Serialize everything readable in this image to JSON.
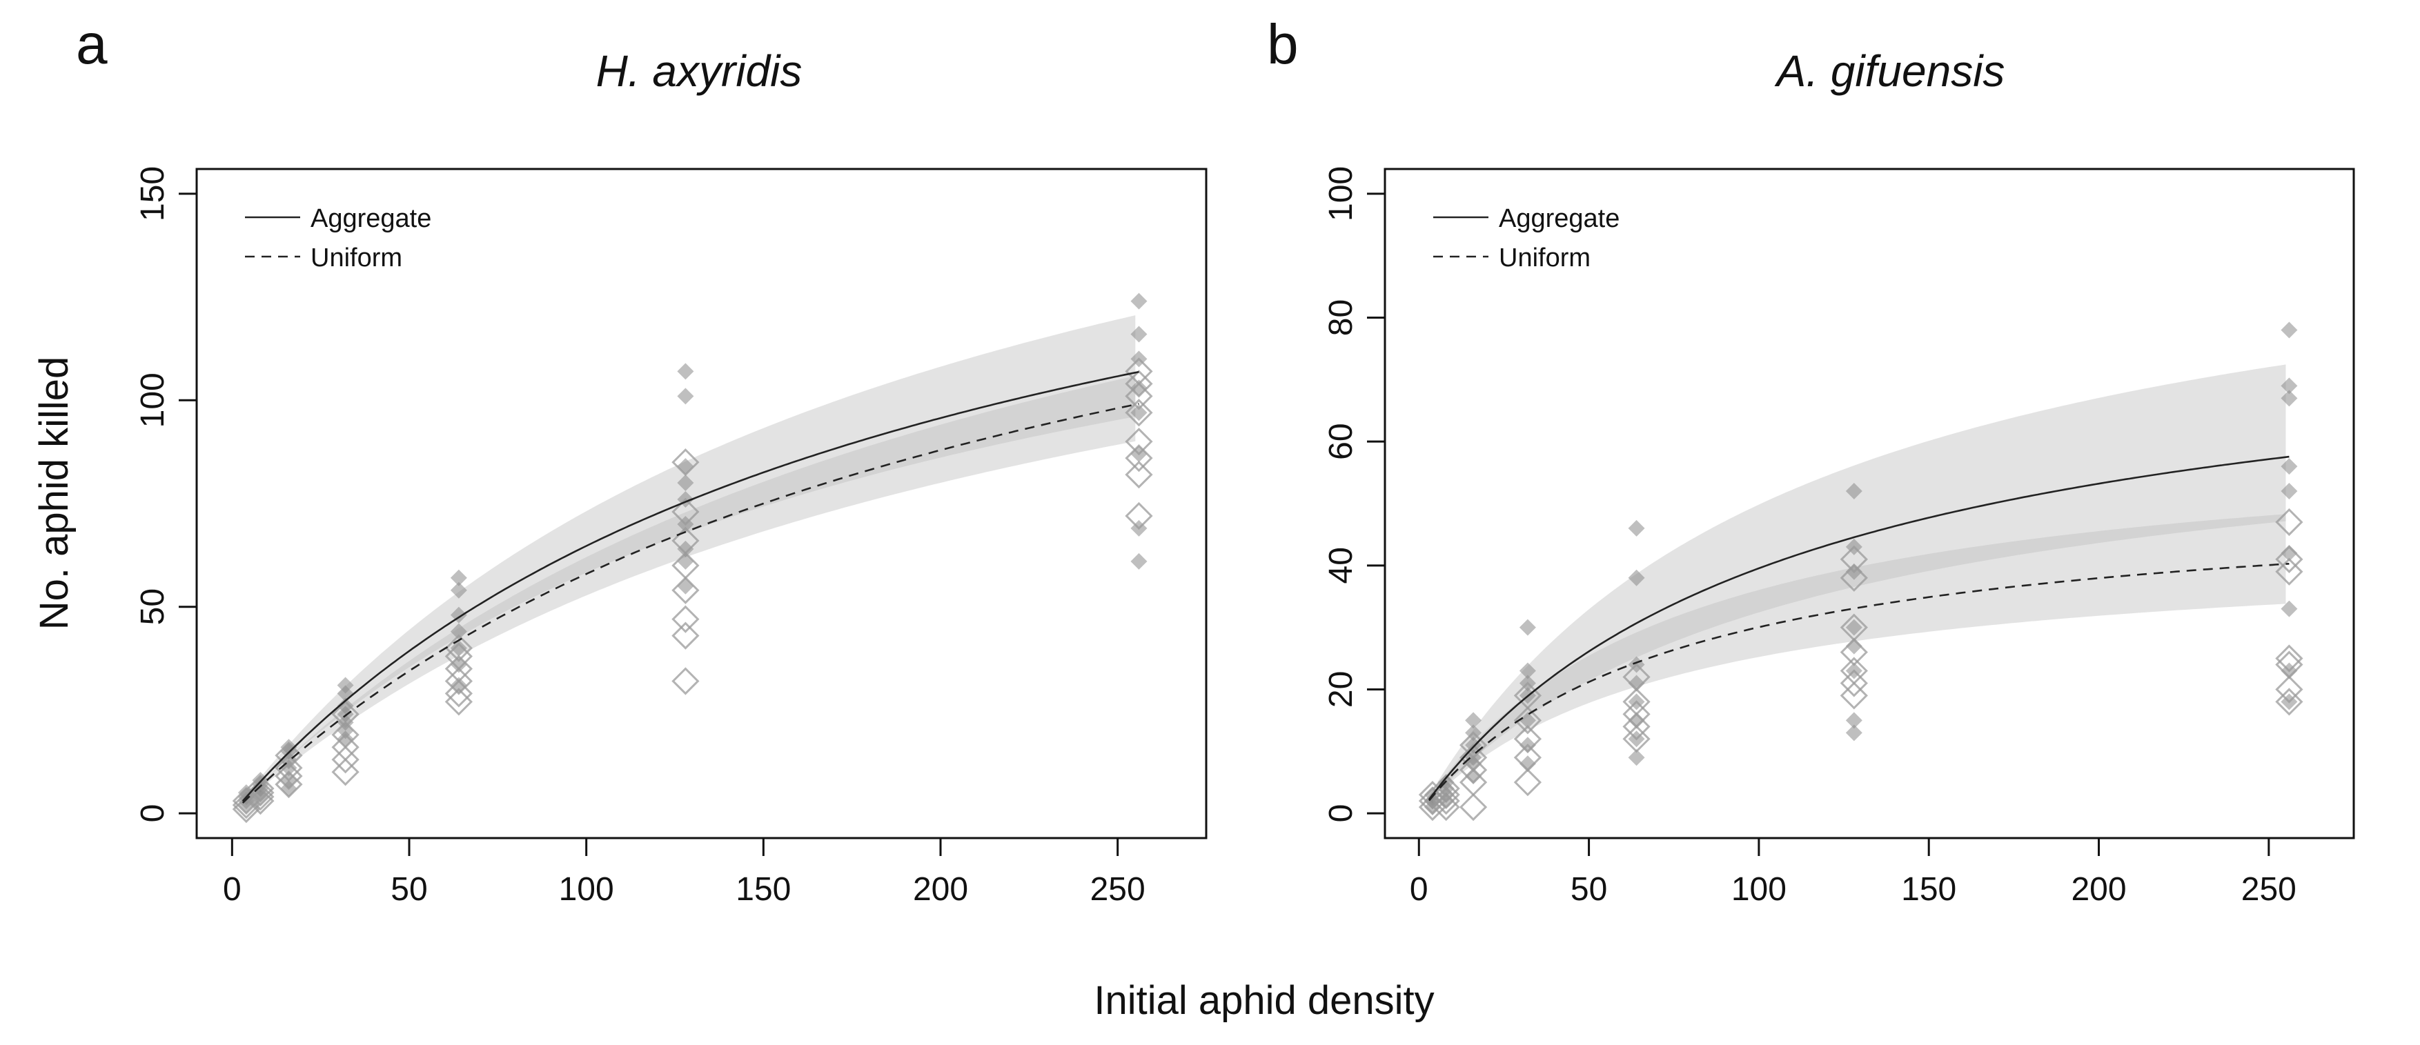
{
  "figure": {
    "ylabel": "No. aphid killed",
    "xlabel": "Initial aphid density"
  },
  "chart_data": [
    {
      "type": "scatter",
      "panel_label": "a",
      "title": "H. axyridis",
      "xlabel": "Initial aphid density",
      "ylabel": "No. aphid killed",
      "xlim": [
        -10,
        275
      ],
      "ylim": [
        -6,
        156
      ],
      "xticks": [
        0,
        50,
        100,
        150,
        200,
        250
      ],
      "yticks": [
        0,
        50,
        100,
        150
      ],
      "legend": {
        "position": "top-left",
        "entries": [
          "Aggregate",
          "Uniform"
        ]
      },
      "curves": [
        {
          "name": "Aggregate",
          "style": "solid",
          "a": 1.0,
          "h": 0.00545,
          "ci_upper_mult": 1.13,
          "ci_lower_mult": 0.9
        },
        {
          "name": "Uniform",
          "style": "dashed",
          "a": 0.85,
          "h": 0.00549,
          "ci_upper_mult": 1.07,
          "ci_lower_mult": 0.91
        }
      ],
      "series": [
        {
          "name": "Aggregate",
          "marker": "filled-diamond",
          "x": [
            4,
            4,
            4,
            4,
            8,
            8,
            8,
            8,
            8,
            16,
            16,
            16,
            16,
            16,
            16,
            32,
            32,
            32,
            32,
            32,
            32,
            32,
            64,
            64,
            64,
            64,
            64,
            64,
            64,
            128,
            128,
            128,
            128,
            128,
            128,
            128,
            128,
            128,
            256,
            256,
            256,
            256,
            256,
            256,
            256,
            256
          ],
          "y": [
            2,
            3,
            4,
            5,
            4,
            6,
            7,
            8,
            5,
            8,
            11,
            13,
            15,
            16,
            6,
            18,
            22,
            26,
            29,
            31,
            20,
            24,
            31,
            36,
            40,
            44,
            48,
            54,
            57,
            55,
            64,
            70,
            76,
            80,
            84,
            101,
            107,
            61,
            61,
            69,
            87,
            97,
            103,
            110,
            116,
            124
          ]
        },
        {
          "name": "Uniform",
          "marker": "open-diamond",
          "x": [
            4,
            4,
            4,
            8,
            8,
            8,
            8,
            16,
            16,
            16,
            16,
            32,
            32,
            32,
            32,
            32,
            64,
            64,
            64,
            64,
            64,
            64,
            128,
            128,
            128,
            128,
            128,
            128,
            128,
            128,
            256,
            256,
            256,
            256,
            256,
            256,
            256,
            256
          ],
          "y": [
            1,
            2,
            3,
            3,
            4,
            5,
            6,
            7,
            9,
            11,
            14,
            10,
            13,
            16,
            19,
            24,
            27,
            29,
            32,
            35,
            38,
            40,
            32,
            43,
            47,
            54,
            60,
            66,
            73,
            85,
            72,
            82,
            86,
            90,
            97,
            101,
            104,
            107
          ]
        }
      ]
    },
    {
      "type": "scatter",
      "panel_label": "b",
      "title": "A. gifuensis",
      "xlabel": "Initial aphid density",
      "ylabel": "No. aphid killed",
      "xlim": [
        -10,
        275
      ],
      "ylim": [
        -4,
        104
      ],
      "xticks": [
        0,
        50,
        100,
        150,
        200,
        250
      ],
      "yticks": [
        0,
        20,
        40,
        60,
        80,
        100
      ],
      "legend": {
        "position": "top-left",
        "entries": [
          "Aggregate",
          "Uniform"
        ]
      },
      "curves": [
        {
          "name": "Aggregate",
          "style": "solid",
          "a": 0.77,
          "h": 0.0123,
          "ci_upper_mult": 1.26,
          "ci_lower_mult": 0.82
        },
        {
          "name": "Uniform",
          "style": "dashed",
          "a": 0.72,
          "h": 0.0194,
          "ci_upper_mult": 1.2,
          "ci_lower_mult": 0.84
        }
      ],
      "series": [
        {
          "name": "Aggregate",
          "marker": "filled-diamond",
          "x": [
            4,
            4,
            4,
            4,
            8,
            8,
            8,
            8,
            16,
            16,
            16,
            16,
            16,
            16,
            32,
            32,
            32,
            32,
            32,
            32,
            32,
            64,
            64,
            64,
            64,
            64,
            64,
            64,
            64,
            128,
            128,
            128,
            128,
            128,
            128,
            128,
            128,
            256,
            256,
            256,
            256,
            256,
            256,
            256,
            256,
            256
          ],
          "y": [
            1,
            2,
            2,
            3,
            2,
            3,
            4,
            5,
            6,
            8,
            9,
            11,
            13,
            15,
            8,
            11,
            15,
            19,
            21,
            23,
            30,
            9,
            12,
            15,
            18,
            21,
            24,
            38,
            46,
            13,
            15,
            23,
            27,
            30,
            39,
            43,
            52,
            18,
            23,
            33,
            42,
            52,
            56,
            67,
            69,
            78
          ]
        },
        {
          "name": "Uniform",
          "marker": "open-diamond",
          "x": [
            4,
            4,
            4,
            8,
            8,
            8,
            8,
            16,
            16,
            16,
            16,
            16,
            32,
            32,
            32,
            32,
            32,
            64,
            64,
            64,
            64,
            64,
            128,
            128,
            128,
            128,
            128,
            128,
            128,
            256,
            256,
            256,
            256,
            256,
            256,
            256
          ],
          "y": [
            1,
            2,
            3,
            1,
            2,
            3,
            4,
            1,
            5,
            7,
            9,
            11,
            5,
            9,
            12,
            15,
            19,
            12,
            14,
            16,
            18,
            22,
            19,
            21,
            23,
            26,
            30,
            38,
            41,
            18,
            20,
            24,
            25,
            39,
            41,
            47
          ]
        }
      ]
    }
  ]
}
